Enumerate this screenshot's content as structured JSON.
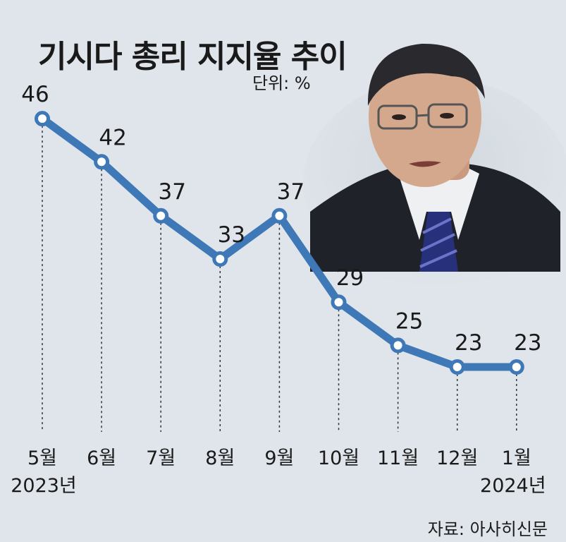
{
  "title": "기시다 총리 지지율 추이",
  "unit": "단위: %",
  "source": "자료: 아사히신문",
  "colors": {
    "background": "#dfe5ea",
    "line": "#3e78b6",
    "marker_fill": "#ffffff",
    "text": "#1a1a1a"
  },
  "chart_data": {
    "type": "line",
    "title": "기시다 총리 지지율 추이",
    "unit": "단위: %",
    "categories": [
      "5월",
      "6월",
      "7월",
      "8월",
      "9월",
      "10월",
      "11월",
      "12월",
      "1월"
    ],
    "year_labels": [
      {
        "category_index": 0,
        "text": "2023년"
      },
      {
        "category_index": 8,
        "text": "2024년"
      }
    ],
    "series": [
      {
        "values": [
          46,
          42,
          37,
          33,
          37,
          29,
          25,
          23,
          23
        ]
      }
    ],
    "data_labels": [
      "46",
      "42",
      "37",
      "33",
      "37",
      "29",
      "25",
      "23",
      "23"
    ],
    "grid": false,
    "legend": "none",
    "marker": "circle"
  }
}
